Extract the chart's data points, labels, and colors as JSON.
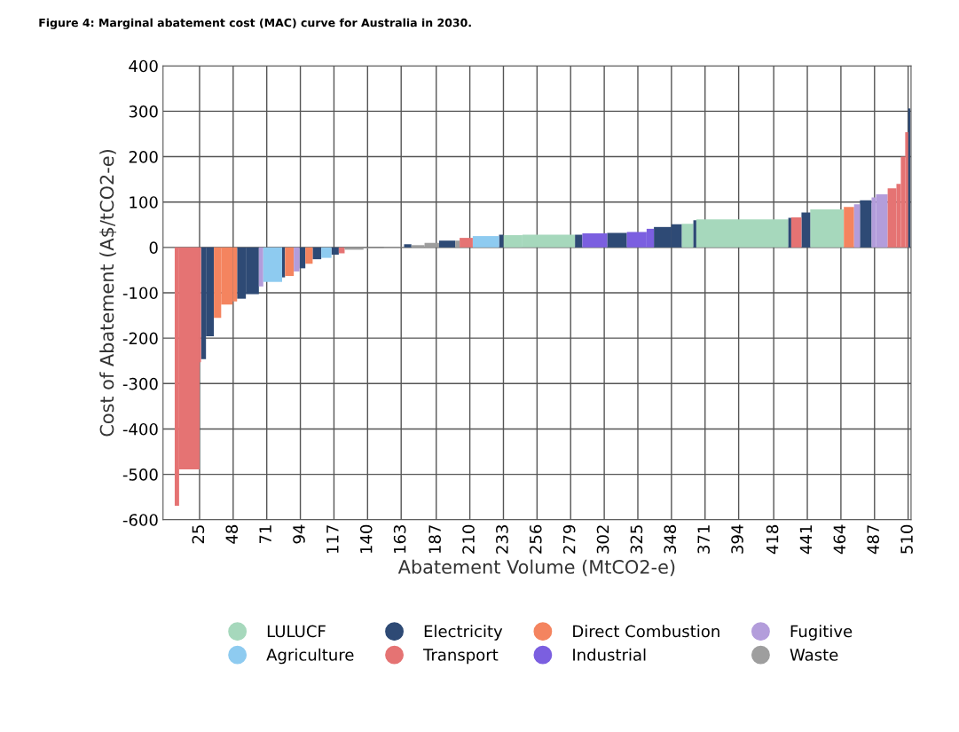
{
  "chart_data": {
    "type": "histogram",
    "title": "Figure 4: Marginal abatement cost (MAC) curve for Australia in 2030.",
    "xlabel": "Abatement Volume (MtCO2-e)",
    "ylabel": "Cost of Abatement (A$/tCO2-e)",
    "bins": [
      8,
      11,
      25,
      26,
      29.4,
      34.8,
      39.8,
      47.7,
      50.7,
      56.7,
      65.6,
      68.6,
      81.5,
      83.5,
      89.5,
      93.4,
      97.4,
      102.4,
      108.3,
      115.3,
      120.3,
      124.3,
      137.2,
      151.1,
      165,
      170,
      179,
      189,
      200,
      203,
      212,
      230,
      233,
      246,
      282,
      287,
      304,
      317.5,
      331,
      336,
      348,
      355,
      363,
      365,
      428,
      430,
      437,
      443,
      466,
      473,
      477,
      485,
      488,
      496,
      502,
      505,
      508,
      510,
      511.5
    ],
    "series": [
      {
        "name": "LULUCF",
        "color": "#a6d8bc",
        "values": [
          null,
          null,
          null,
          null,
          null,
          null,
          null,
          null,
          null,
          null,
          null,
          null,
          null,
          null,
          null,
          null,
          null,
          null,
          null,
          null,
          null,
          null,
          null,
          null,
          null,
          null,
          null,
          null,
          null,
          null,
          null,
          null,
          27,
          28,
          null,
          null,
          null,
          null,
          null,
          null,
          null,
          52,
          null,
          62,
          null,
          null,
          null,
          84,
          null,
          null,
          null,
          null,
          null,
          null,
          null,
          null,
          null,
          null
        ]
      },
      {
        "name": "Electricity",
        "color": "#2e4a75",
        "values": [
          null,
          null,
          null,
          -246,
          -196,
          null,
          null,
          null,
          -113,
          -103,
          null,
          null,
          -66,
          null,
          null,
          -46,
          null,
          -26,
          null,
          -16,
          null,
          null,
          null,
          null,
          7,
          null,
          null,
          15,
          null,
          null,
          null,
          28,
          null,
          null,
          28,
          null,
          32,
          null,
          null,
          45,
          51,
          null,
          60,
          null,
          65,
          null,
          77,
          null,
          null,
          null,
          104,
          null,
          null,
          null,
          null,
          null,
          null,
          306
        ]
      },
      {
        "name": "Direct Combustion",
        "color": "#f4845f",
        "values": [
          null,
          null,
          null,
          null,
          null,
          -155,
          -126,
          -119,
          null,
          null,
          null,
          null,
          null,
          -63,
          null,
          null,
          -36,
          null,
          null,
          null,
          null,
          null,
          null,
          null,
          null,
          null,
          null,
          null,
          null,
          null,
          null,
          null,
          null,
          null,
          null,
          null,
          null,
          null,
          null,
          null,
          null,
          null,
          null,
          null,
          null,
          null,
          null,
          null,
          89,
          null,
          null,
          null,
          null,
          null,
          null,
          null,
          null,
          null
        ]
      },
      {
        "name": "Fugitive",
        "color": "#b39ddb",
        "values": [
          null,
          null,
          null,
          null,
          null,
          null,
          null,
          null,
          null,
          null,
          -86,
          null,
          null,
          null,
          -53,
          null,
          null,
          null,
          null,
          null,
          null,
          null,
          null,
          null,
          null,
          null,
          null,
          null,
          null,
          null,
          null,
          null,
          null,
          null,
          null,
          null,
          null,
          null,
          null,
          null,
          null,
          null,
          null,
          null,
          null,
          null,
          null,
          null,
          null,
          95,
          null,
          110,
          117,
          null,
          null,
          null,
          null,
          null
        ]
      },
      {
        "name": "Agriculture",
        "color": "#8ecbf0",
        "values": [
          null,
          null,
          null,
          null,
          null,
          null,
          null,
          null,
          null,
          null,
          null,
          -76,
          null,
          null,
          null,
          null,
          null,
          null,
          -23,
          null,
          null,
          null,
          null,
          null,
          null,
          null,
          null,
          null,
          null,
          null,
          25,
          null,
          null,
          null,
          null,
          null,
          null,
          null,
          null,
          null,
          null,
          null,
          null,
          null,
          null,
          null,
          null,
          null,
          null,
          null,
          null,
          null,
          null,
          null,
          null,
          null,
          null,
          null
        ]
      },
      {
        "name": "Transport",
        "color": "#e57373",
        "values": [
          -569,
          -489,
          -253,
          null,
          null,
          null,
          null,
          null,
          null,
          null,
          null,
          null,
          null,
          null,
          null,
          null,
          null,
          null,
          null,
          null,
          -13,
          null,
          null,
          null,
          null,
          null,
          null,
          null,
          null,
          21,
          null,
          null,
          null,
          null,
          null,
          null,
          null,
          null,
          null,
          null,
          null,
          null,
          null,
          null,
          null,
          66,
          null,
          null,
          null,
          null,
          null,
          null,
          null,
          130,
          140,
          200,
          254,
          null
        ]
      },
      {
        "name": "Industrial",
        "color": "#7b5fe0",
        "values": [
          null,
          null,
          null,
          null,
          null,
          null,
          null,
          null,
          null,
          null,
          null,
          null,
          null,
          null,
          null,
          null,
          null,
          null,
          null,
          null,
          null,
          null,
          null,
          null,
          null,
          null,
          null,
          null,
          null,
          null,
          null,
          null,
          null,
          null,
          null,
          31,
          null,
          34,
          41,
          null,
          null,
          null,
          null,
          null,
          null,
          null,
          null,
          null,
          null,
          null,
          null,
          null,
          null,
          null,
          null,
          null,
          null,
          null
        ]
      },
      {
        "name": "Waste",
        "color": "#9e9e9e",
        "values": [
          null,
          null,
          null,
          null,
          null,
          null,
          null,
          null,
          null,
          null,
          null,
          null,
          null,
          null,
          null,
          null,
          null,
          null,
          null,
          null,
          null,
          -5,
          -2,
          1,
          null,
          5,
          10,
          null,
          15,
          null,
          null,
          null,
          null,
          null,
          null,
          null,
          null,
          null,
          null,
          null,
          null,
          null,
          null,
          null,
          null,
          null,
          null,
          null,
          null,
          null,
          null,
          null,
          null,
          null,
          null,
          null,
          null,
          null
        ]
      }
    ],
    "xlim": [
      0,
      512
    ],
    "xticks": [
      25,
      48,
      71,
      94,
      117,
      140,
      163,
      187,
      210,
      233,
      256,
      279,
      302,
      325,
      348,
      371,
      394,
      418,
      441,
      464,
      487,
      510
    ],
    "ylim": [
      -600,
      400
    ],
    "yticks": [
      -600,
      -500,
      -400,
      -300,
      -200,
      -100,
      0,
      100,
      200,
      300,
      400
    ],
    "grid": true,
    "legend": "bottom",
    "marker": "circle"
  }
}
